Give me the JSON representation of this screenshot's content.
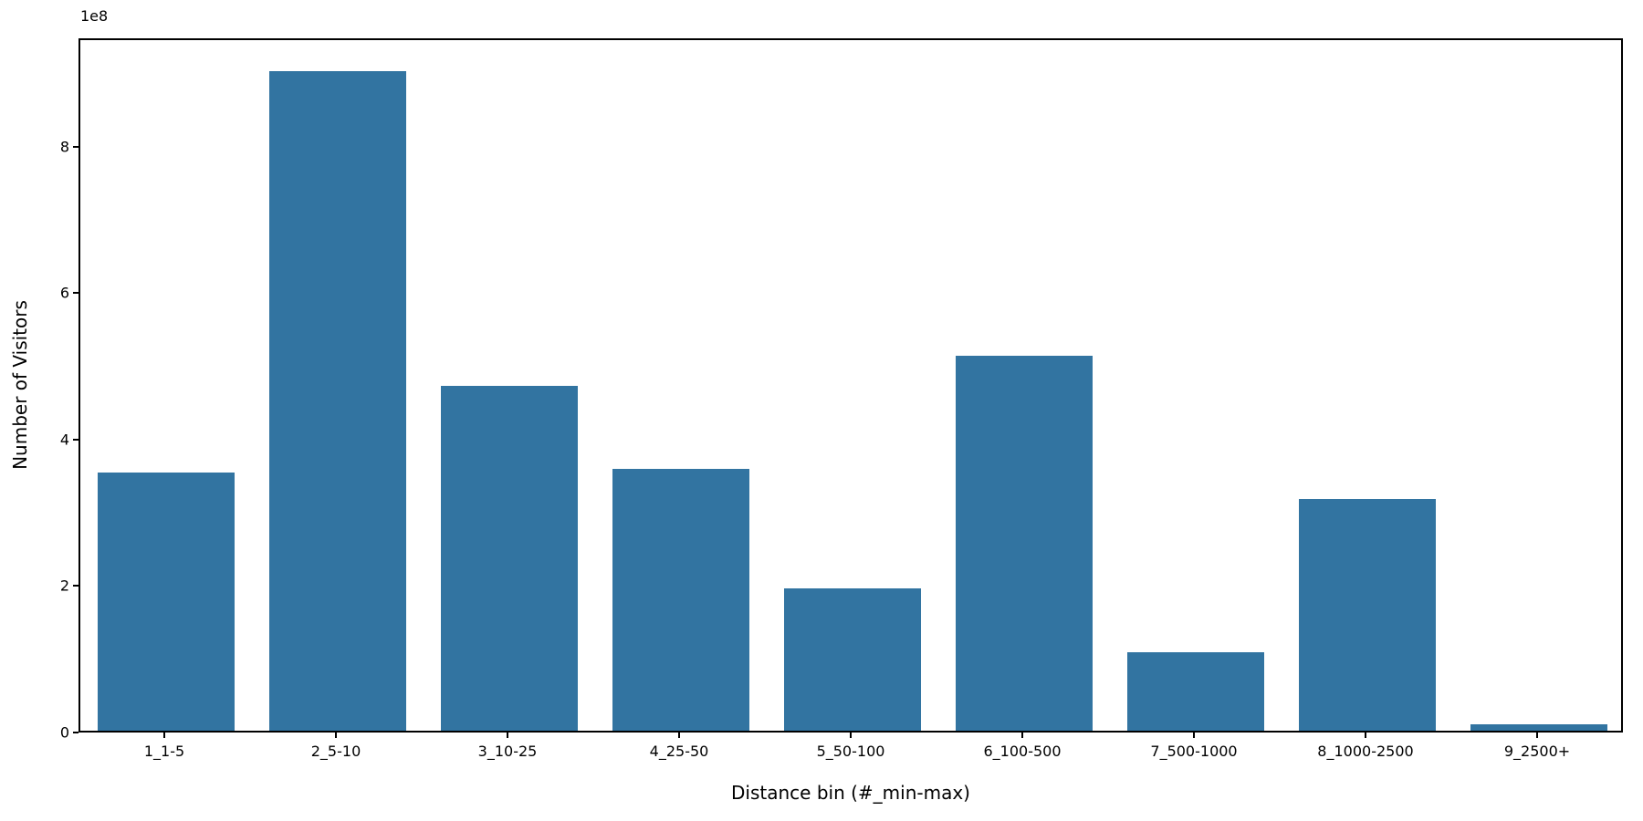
{
  "chart_data": {
    "type": "bar",
    "title": "",
    "xlabel": "Distance bin (#_min-max)",
    "ylabel": "Number of Visitors",
    "offset_text": "1e8",
    "categories": [
      "1_1-5",
      "2_5-10",
      "3_10-25",
      "4_25-50",
      "5_50-100",
      "6_100-500",
      "7_500-1000",
      "8_1000-2500",
      "9_2500+"
    ],
    "values": [
      353000000,
      901000000,
      471000000,
      358000000,
      194000000,
      512000000,
      107000000,
      316000000,
      9000000
    ],
    "ylim": [
      0,
      948000000
    ],
    "yticks": [
      0,
      200000000,
      400000000,
      600000000,
      800000000
    ],
    "ytick_labels": [
      "0",
      "2",
      "4",
      "6",
      "8"
    ],
    "bar_width_frac": 0.8,
    "bar_color": "#3274a1",
    "axis_color": "#000000",
    "background_color": "#ffffff",
    "grid": false,
    "legend_position": "none"
  }
}
